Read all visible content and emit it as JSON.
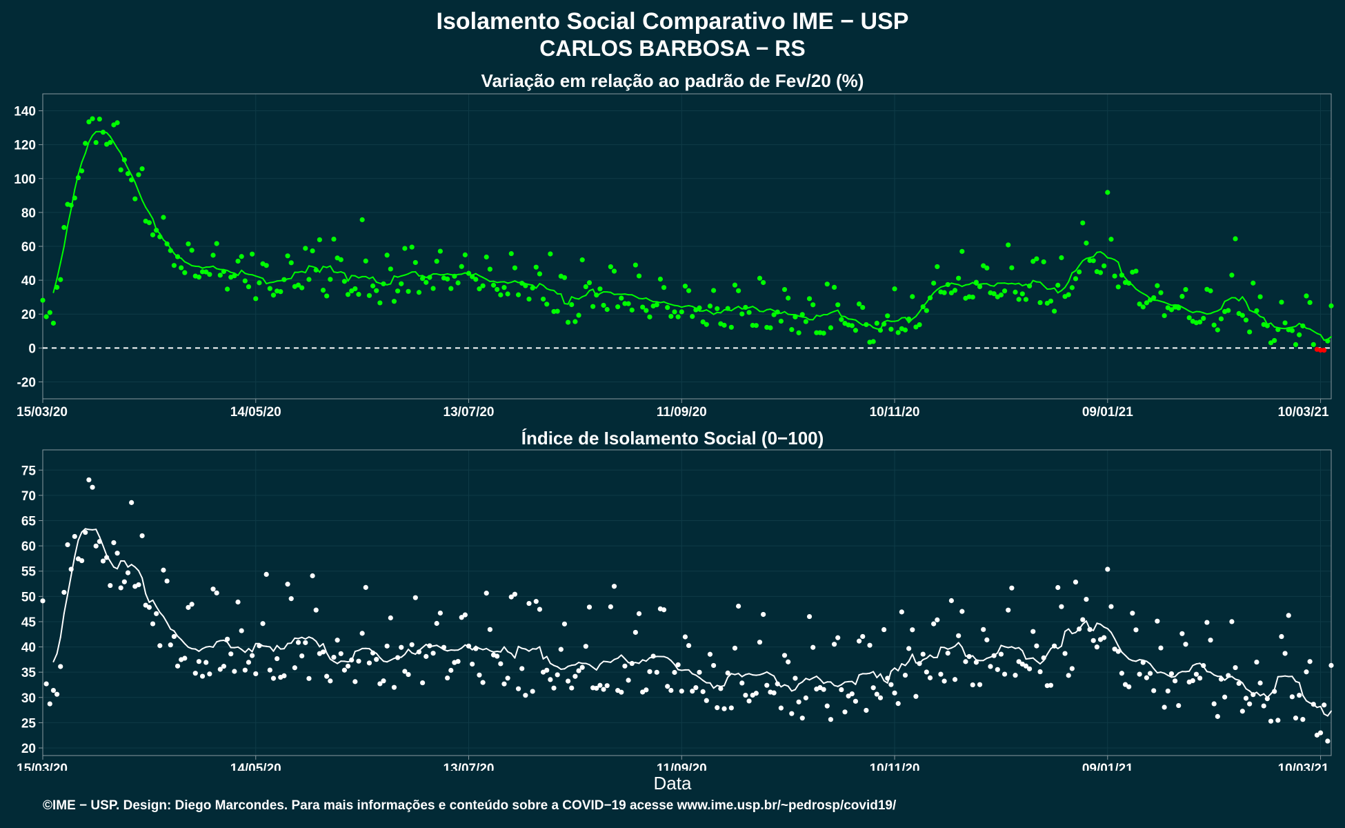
{
  "title": "Isolamento Social Comparativo IME − USP",
  "subtitle": "CARLOS BARBOSA − RS",
  "x_axis_title": "Data",
  "caption": "©IME − USP. Design: Diego Marcondes. Para mais informações e conteúdo sobre a COVID−19 acesse www.ime.usp.br/~pedrosp/covid19/",
  "colors": {
    "background": "#022a36",
    "positive": "#00ff00",
    "negative": "#ff0000",
    "index_series": "#ffffff"
  },
  "chart_data": [
    {
      "type": "scatter",
      "title": "Variação em relação ao padrão de Fev/20 (%)",
      "xlabel": "",
      "ylabel": "",
      "x_tick_labels": [
        "15/03/20",
        "14/05/20",
        "13/07/20",
        "11/09/20",
        "10/11/20",
        "09/01/21",
        "10/03/21"
      ],
      "x_tick_days": [
        0,
        60,
        120,
        180,
        240,
        300,
        360
      ],
      "y_ticks": [
        -20,
        0,
        20,
        40,
        60,
        80,
        100,
        120,
        140
      ],
      "ylim": [
        -30,
        150
      ],
      "xlim": [
        0,
        363
      ],
      "reference_line": 0,
      "grid": true,
      "anchors": [
        [
          0,
          10
        ],
        [
          3,
          20
        ],
        [
          5,
          40
        ],
        [
          8,
          80
        ],
        [
          12,
          115
        ],
        [
          16,
          130
        ],
        [
          20,
          115
        ],
        [
          25,
          100
        ],
        [
          30,
          70
        ],
        [
          35,
          55
        ],
        [
          40,
          48
        ],
        [
          45,
          42
        ],
        [
          50,
          40
        ],
        [
          55,
          36
        ],
        [
          60,
          35
        ],
        [
          70,
          38
        ],
        [
          80,
          36
        ],
        [
          90,
          32
        ],
        [
          100,
          33
        ],
        [
          110,
          38
        ],
        [
          120,
          40
        ],
        [
          130,
          36
        ],
        [
          140,
          32
        ],
        [
          145,
          22
        ],
        [
          150,
          20
        ],
        [
          155,
          30
        ],
        [
          160,
          28
        ],
        [
          165,
          26
        ],
        [
          170,
          24
        ],
        [
          175,
          24
        ],
        [
          180,
          22
        ],
        [
          190,
          18
        ],
        [
          200,
          18
        ],
        [
          210,
          15
        ],
        [
          220,
          12
        ],
        [
          230,
          10
        ],
        [
          240,
          8
        ],
        [
          245,
          12
        ],
        [
          250,
          30
        ],
        [
          260,
          35
        ],
        [
          270,
          34
        ],
        [
          280,
          33
        ],
        [
          285,
          25
        ],
        [
          290,
          40
        ],
        [
          295,
          50
        ],
        [
          300,
          45
        ],
        [
          305,
          38
        ],
        [
          310,
          28
        ],
        [
          320,
          20
        ],
        [
          330,
          15
        ],
        [
          335,
          22
        ],
        [
          340,
          10
        ],
        [
          345,
          8
        ],
        [
          350,
          5
        ],
        [
          355,
          10
        ],
        [
          360,
          3
        ],
        [
          363,
          8
        ]
      ],
      "seed": 7,
      "noise": 6
    },
    {
      "type": "scatter",
      "title": "Índice de Isolamento Social (0−100)",
      "xlabel": "Data",
      "ylabel": "",
      "x_tick_labels": [
        "15/03/20",
        "14/05/20",
        "13/07/20",
        "11/09/20",
        "10/11/20",
        "09/01/21",
        "10/03/21"
      ],
      "x_tick_days": [
        0,
        60,
        120,
        180,
        240,
        300,
        360
      ],
      "y_ticks": [
        20,
        25,
        30,
        35,
        40,
        45,
        50,
        55,
        60,
        65,
        70,
        75
      ],
      "ylim": [
        18.5,
        79
      ],
      "xlim": [
        0,
        363
      ],
      "grid": true,
      "anchors": [
        [
          0,
          41
        ],
        [
          2,
          30
        ],
        [
          4,
          32
        ],
        [
          6,
          38
        ],
        [
          8,
          58
        ],
        [
          10,
          60
        ],
        [
          12,
          62
        ],
        [
          16,
          58
        ],
        [
          20,
          55
        ],
        [
          25,
          50
        ],
        [
          30,
          45
        ],
        [
          35,
          40
        ],
        [
          40,
          38
        ],
        [
          45,
          37
        ],
        [
          50,
          38
        ],
        [
          55,
          38
        ],
        [
          60,
          37
        ],
        [
          70,
          38
        ],
        [
          80,
          36
        ],
        [
          90,
          35
        ],
        [
          100,
          36
        ],
        [
          110,
          37
        ],
        [
          120,
          38
        ],
        [
          130,
          35
        ],
        [
          140,
          33
        ],
        [
          150,
          33
        ],
        [
          160,
          34
        ],
        [
          170,
          35
        ],
        [
          180,
          33
        ],
        [
          190,
          31
        ],
        [
          200,
          32
        ],
        [
          210,
          30
        ],
        [
          220,
          29
        ],
        [
          230,
          28
        ],
        [
          240,
          29
        ],
        [
          245,
          32
        ],
        [
          250,
          37
        ],
        [
          260,
          36
        ],
        [
          270,
          36
        ],
        [
          280,
          35
        ],
        [
          290,
          38
        ],
        [
          295,
          42
        ],
        [
          300,
          38
        ],
        [
          305,
          35
        ],
        [
          315,
          32
        ],
        [
          320,
          30
        ],
        [
          325,
          34
        ],
        [
          330,
          30
        ],
        [
          335,
          31
        ],
        [
          340,
          28
        ],
        [
          345,
          27
        ],
        [
          350,
          30
        ],
        [
          355,
          27
        ],
        [
          360,
          26
        ],
        [
          363,
          24
        ]
      ],
      "seed": 13,
      "noise": 4
    }
  ]
}
